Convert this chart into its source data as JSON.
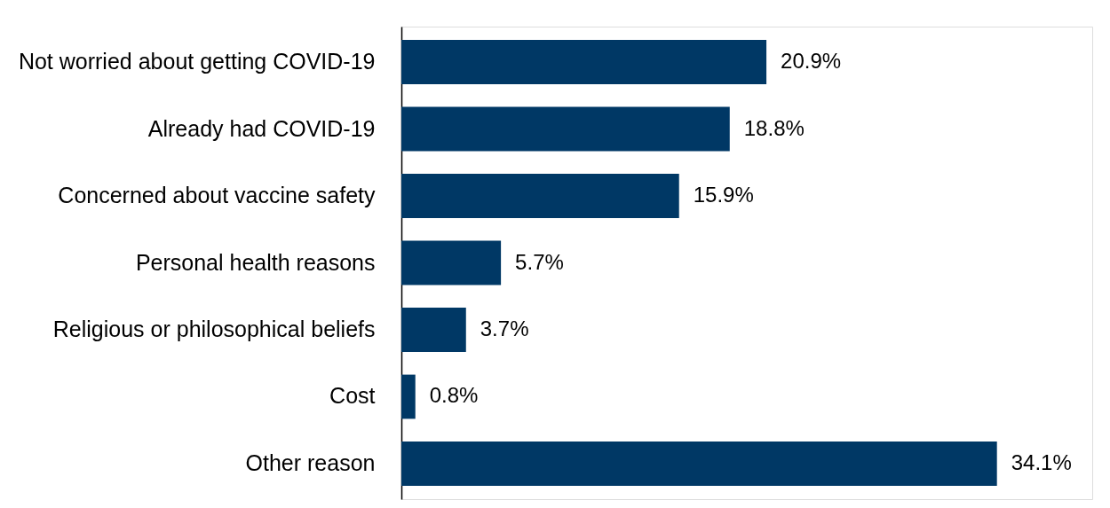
{
  "chart_data": {
    "type": "bar",
    "orientation": "horizontal",
    "categories": [
      "Not worried about getting COVID-19",
      "Already had COVID-19",
      "Concerned about vaccine safety",
      "Personal health reasons",
      "Religious or philosophical beliefs",
      "Cost",
      "Other reason"
    ],
    "values": [
      20.9,
      18.8,
      15.9,
      5.7,
      3.7,
      0.8,
      34.1
    ],
    "value_labels": [
      "20.9%",
      "18.8%",
      "15.9%",
      "5.7%",
      "3.7%",
      "0.8%",
      "34.1%"
    ],
    "color": "#003865"
  }
}
